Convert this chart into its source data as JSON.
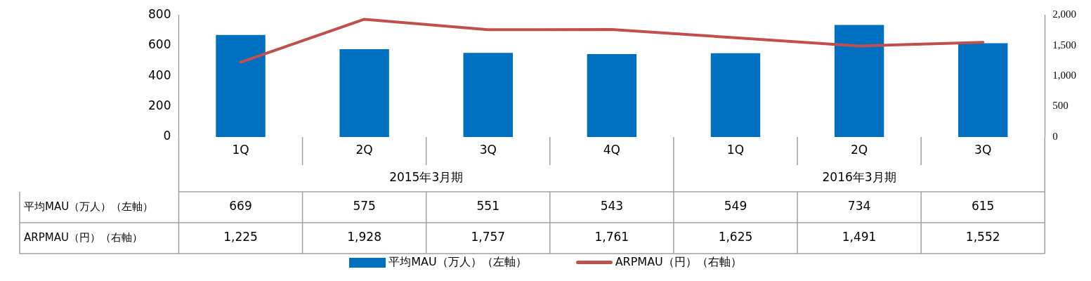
{
  "chart_data": {
    "type": "bar",
    "categories": [
      "1Q",
      "2Q",
      "3Q",
      "4Q",
      "1Q",
      "2Q",
      "3Q"
    ],
    "annotations": [
      "2015年3月期",
      "2016年3月期"
    ],
    "series": [
      {
        "name": "平均MAU（万人）（左軸）",
        "color": "#0070c0",
        "values": [
          669,
          575,
          551,
          543,
          549,
          734,
          615
        ],
        "value_labels": [
          "669",
          "575",
          "551",
          "543",
          "549",
          "734",
          "615"
        ]
      },
      {
        "name": "ARPMAU（円）（右軸）",
        "type": "line",
        "axis": "y2",
        "color": "#c0504d",
        "values": [
          1225,
          1928,
          1757,
          1761,
          1625,
          1491,
          1552
        ],
        "value_labels": [
          "1,225",
          "1,928",
          "1,757",
          "1,761",
          "1,625",
          "1,491",
          "1,552"
        ]
      }
    ],
    "ylim": [
      0,
      800
    ],
    "yticks": [
      0,
      200,
      400,
      600,
      800
    ],
    "y2lim": [
      0,
      2000
    ],
    "y2ticks": [
      0,
      500,
      {
        "value": 1000,
        "label": "1,000"
      },
      {
        "value": 1500,
        "label": "1,500"
      },
      {
        "value": 2000,
        "label": "2,000"
      }
    ],
    "grid": false,
    "legend": "bottom",
    "marker": "none"
  }
}
